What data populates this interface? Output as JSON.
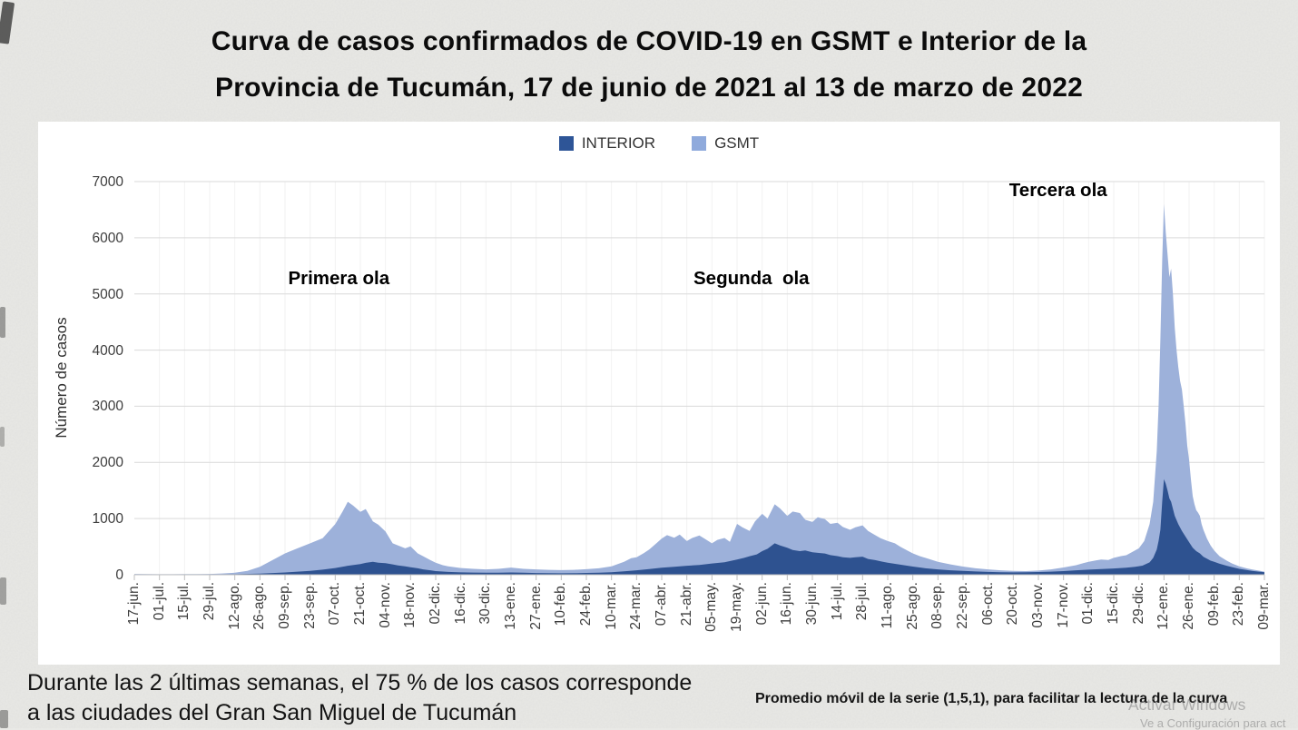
{
  "page": {
    "title_line1": "Curva de casos confirmados de COVID-19 en GSMT e Interior de la",
    "title_line2": "Provincia de Tucumán, 17 de junio de 2021 al 13 de marzo de 2022",
    "footnote_left_line1": "Durante las 2 últimas semanas, el 75 % de los casos corresponde",
    "footnote_left_line2": "a las ciudades del Gran San Miguel de Tucumán",
    "footnote_right": "Promedio móvil de la serie (1,5,1), para facilitar la lectura de la curva",
    "watermark_line1": "Activar Windows",
    "watermark_line2": "Ve a Configuración para act"
  },
  "chart_data": {
    "type": "area",
    "title": "",
    "xlabel": "",
    "ylabel": "Número de casos",
    "ylim": [
      0,
      7000
    ],
    "ytick_step": 1000,
    "yticks": [
      0,
      1000,
      2000,
      3000,
      4000,
      5000,
      6000,
      7000
    ],
    "grid": {
      "horizontal": true,
      "vertical": "faint"
    },
    "legend_position": "top-center",
    "legend": [
      {
        "name": "INTERIOR",
        "color": "#2E5597"
      },
      {
        "name": "GSMT",
        "color": "#8FAADC"
      }
    ],
    "xtick_labels": [
      "17-jun.",
      "01-jul.",
      "15-jul.",
      "29-jul.",
      "12-ago.",
      "26-ago.",
      "09-sep.",
      "23-sep.",
      "07-oct.",
      "21-oct.",
      "04-nov.",
      "18-nov.",
      "02-dic.",
      "16-dic.",
      "30-dic.",
      "13-ene.",
      "27-ene.",
      "10-feb.",
      "24-feb.",
      "10-mar.",
      "24-mar.",
      "07-abr.",
      "21-abr.",
      "05-may.",
      "19-may.",
      "02-jun.",
      "16-jun.",
      "30-jun.",
      "14-jul.",
      "28-jul.",
      "11-ago.",
      "25-ago.",
      "08-sep.",
      "22-sep.",
      "06-oct.",
      "20-oct.",
      "03-nov.",
      "17-nov.",
      "01-dic.",
      "15-dic.",
      "29-dic.",
      "12-ene.",
      "26-ene.",
      "09-feb.",
      "23-feb.",
      "09-mar."
    ],
    "xtick_days": [
      0,
      14,
      28,
      42,
      56,
      70,
      84,
      98,
      112,
      126,
      140,
      154,
      168,
      182,
      196,
      210,
      224,
      238,
      252,
      266,
      280,
      294,
      308,
      322,
      336,
      350,
      364,
      378,
      392,
      406,
      420,
      434,
      448,
      462,
      476,
      490,
      504,
      518,
      532,
      546,
      560,
      574,
      588,
      602,
      616,
      630
    ],
    "annotations": [
      {
        "text": "Primera ola",
        "day": 114,
        "value": 5270
      },
      {
        "text": "Segunda  ola",
        "day": 344,
        "value": 5270
      },
      {
        "text": "Tercera ola",
        "day": 515,
        "value": 6840
      }
    ],
    "series": [
      {
        "name": "GSMT",
        "color": "#9DB1DA",
        "points": [
          [
            0,
            15
          ],
          [
            7,
            12
          ],
          [
            14,
            10
          ],
          [
            21,
            10
          ],
          [
            28,
            12
          ],
          [
            35,
            13
          ],
          [
            42,
            15
          ],
          [
            49,
            22
          ],
          [
            56,
            35
          ],
          [
            63,
            70
          ],
          [
            70,
            140
          ],
          [
            77,
            260
          ],
          [
            84,
            380
          ],
          [
            91,
            470
          ],
          [
            98,
            560
          ],
          [
            105,
            650
          ],
          [
            112,
            900
          ],
          [
            116,
            1120
          ],
          [
            119,
            1300
          ],
          [
            122,
            1230
          ],
          [
            126,
            1120
          ],
          [
            129,
            1170
          ],
          [
            133,
            950
          ],
          [
            136,
            890
          ],
          [
            140,
            770
          ],
          [
            144,
            560
          ],
          [
            147,
            520
          ],
          [
            151,
            470
          ],
          [
            154,
            505
          ],
          [
            158,
            380
          ],
          [
            161,
            330
          ],
          [
            165,
            260
          ],
          [
            168,
            215
          ],
          [
            172,
            170
          ],
          [
            175,
            150
          ],
          [
            182,
            120
          ],
          [
            189,
            105
          ],
          [
            196,
            95
          ],
          [
            203,
            105
          ],
          [
            210,
            128
          ],
          [
            217,
            105
          ],
          [
            224,
            95
          ],
          [
            231,
            88
          ],
          [
            238,
            82
          ],
          [
            245,
            88
          ],
          [
            252,
            98
          ],
          [
            259,
            115
          ],
          [
            266,
            150
          ],
          [
            273,
            230
          ],
          [
            277,
            295
          ],
          [
            280,
            310
          ],
          [
            284,
            385
          ],
          [
            287,
            450
          ],
          [
            291,
            560
          ],
          [
            294,
            645
          ],
          [
            297,
            705
          ],
          [
            301,
            660
          ],
          [
            304,
            715
          ],
          [
            308,
            600
          ],
          [
            311,
            655
          ],
          [
            315,
            700
          ],
          [
            318,
            640
          ],
          [
            322,
            560
          ],
          [
            325,
            620
          ],
          [
            329,
            655
          ],
          [
            332,
            585
          ],
          [
            336,
            905
          ],
          [
            339,
            845
          ],
          [
            343,
            780
          ],
          [
            346,
            950
          ],
          [
            350,
            1085
          ],
          [
            353,
            1000
          ],
          [
            357,
            1255
          ],
          [
            360,
            1180
          ],
          [
            364,
            1050
          ],
          [
            367,
            1125
          ],
          [
            371,
            1100
          ],
          [
            374,
            980
          ],
          [
            378,
            940
          ],
          [
            381,
            1025
          ],
          [
            385,
            990
          ],
          [
            388,
            905
          ],
          [
            392,
            925
          ],
          [
            395,
            850
          ],
          [
            399,
            800
          ],
          [
            402,
            845
          ],
          [
            406,
            880
          ],
          [
            409,
            780
          ],
          [
            413,
            705
          ],
          [
            416,
            650
          ],
          [
            420,
            600
          ],
          [
            424,
            560
          ],
          [
            427,
            500
          ],
          [
            431,
            430
          ],
          [
            434,
            380
          ],
          [
            438,
            330
          ],
          [
            441,
            300
          ],
          [
            448,
            230
          ],
          [
            455,
            185
          ],
          [
            462,
            145
          ],
          [
            469,
            115
          ],
          [
            476,
            95
          ],
          [
            483,
            80
          ],
          [
            490,
            70
          ],
          [
            497,
            65
          ],
          [
            504,
            75
          ],
          [
            511,
            95
          ],
          [
            518,
            130
          ],
          [
            525,
            170
          ],
          [
            529,
            205
          ],
          [
            532,
            230
          ],
          [
            536,
            255
          ],
          [
            539,
            270
          ],
          [
            543,
            262
          ],
          [
            546,
            300
          ],
          [
            550,
            332
          ],
          [
            553,
            348
          ],
          [
            556,
            400
          ],
          [
            560,
            470
          ],
          [
            563,
            600
          ],
          [
            566,
            900
          ],
          [
            568,
            1300
          ],
          [
            570,
            2200
          ],
          [
            571,
            3000
          ],
          [
            572,
            4200
          ],
          [
            573,
            5600
          ],
          [
            574,
            6600
          ],
          [
            575,
            6100
          ],
          [
            576,
            5700
          ],
          [
            577,
            5300
          ],
          [
            578,
            5450
          ],
          [
            579,
            5000
          ],
          [
            580,
            4400
          ],
          [
            581,
            4000
          ],
          [
            582,
            3700
          ],
          [
            583,
            3450
          ],
          [
            584,
            3300
          ],
          [
            585,
            3000
          ],
          [
            586,
            2700
          ],
          [
            587,
            2300
          ],
          [
            588,
            2050
          ],
          [
            589,
            1700
          ],
          [
            590,
            1400
          ],
          [
            591,
            1260
          ],
          [
            592,
            1150
          ],
          [
            593,
            1105
          ],
          [
            594,
            1050
          ],
          [
            595,
            900
          ],
          [
            596,
            800
          ],
          [
            598,
            640
          ],
          [
            600,
            520
          ],
          [
            602,
            430
          ],
          [
            605,
            330
          ],
          [
            609,
            250
          ],
          [
            612,
            200
          ],
          [
            616,
            150
          ],
          [
            620,
            115
          ],
          [
            623,
            95
          ],
          [
            627,
            72
          ],
          [
            630,
            55
          ]
        ]
      },
      {
        "name": "INTERIOR",
        "color": "#2E5290",
        "points": [
          [
            0,
            5
          ],
          [
            14,
            4
          ],
          [
            28,
            5
          ],
          [
            42,
            6
          ],
          [
            56,
            10
          ],
          [
            70,
            20
          ],
          [
            84,
            40
          ],
          [
            98,
            70
          ],
          [
            105,
            90
          ],
          [
            112,
            120
          ],
          [
            119,
            160
          ],
          [
            126,
            190
          ],
          [
            129,
            212
          ],
          [
            133,
            230
          ],
          [
            136,
            215
          ],
          [
            140,
            205
          ],
          [
            144,
            185
          ],
          [
            147,
            165
          ],
          [
            151,
            150
          ],
          [
            154,
            132
          ],
          [
            158,
            115
          ],
          [
            161,
            95
          ],
          [
            165,
            80
          ],
          [
            168,
            65
          ],
          [
            175,
            50
          ],
          [
            182,
            42
          ],
          [
            189,
            38
          ],
          [
            196,
            35
          ],
          [
            203,
            36
          ],
          [
            210,
            40
          ],
          [
            217,
            35
          ],
          [
            224,
            30
          ],
          [
            231,
            28
          ],
          [
            238,
            26
          ],
          [
            245,
            28
          ],
          [
            252,
            32
          ],
          [
            259,
            36
          ],
          [
            266,
            45
          ],
          [
            273,
            60
          ],
          [
            280,
            80
          ],
          [
            287,
            100
          ],
          [
            294,
            125
          ],
          [
            301,
            140
          ],
          [
            308,
            160
          ],
          [
            315,
            175
          ],
          [
            322,
            200
          ],
          [
            329,
            222
          ],
          [
            336,
            270
          ],
          [
            340,
            300
          ],
          [
            343,
            330
          ],
          [
            347,
            362
          ],
          [
            350,
            420
          ],
          [
            353,
            462
          ],
          [
            357,
            560
          ],
          [
            360,
            520
          ],
          [
            364,
            480
          ],
          [
            367,
            442
          ],
          [
            371,
            420
          ],
          [
            374,
            432
          ],
          [
            378,
            400
          ],
          [
            381,
            390
          ],
          [
            385,
            378
          ],
          [
            388,
            350
          ],
          [
            392,
            332
          ],
          [
            395,
            312
          ],
          [
            399,
            300
          ],
          [
            402,
            310
          ],
          [
            406,
            322
          ],
          [
            409,
            282
          ],
          [
            413,
            260
          ],
          [
            417,
            232
          ],
          [
            420,
            215
          ],
          [
            427,
            180
          ],
          [
            434,
            145
          ],
          [
            441,
            115
          ],
          [
            448,
            95
          ],
          [
            455,
            80
          ],
          [
            462,
            68
          ],
          [
            469,
            58
          ],
          [
            476,
            50
          ],
          [
            483,
            45
          ],
          [
            490,
            42
          ],
          [
            497,
            44
          ],
          [
            504,
            48
          ],
          [
            511,
            55
          ],
          [
            518,
            65
          ],
          [
            525,
            80
          ],
          [
            532,
            90
          ],
          [
            539,
            100
          ],
          [
            546,
            112
          ],
          [
            553,
            126
          ],
          [
            558,
            140
          ],
          [
            562,
            162
          ],
          [
            566,
            220
          ],
          [
            568,
            300
          ],
          [
            570,
            450
          ],
          [
            571,
            600
          ],
          [
            572,
            800
          ],
          [
            573,
            1300
          ],
          [
            574,
            1700
          ],
          [
            575,
            1620
          ],
          [
            576,
            1500
          ],
          [
            577,
            1360
          ],
          [
            578,
            1300
          ],
          [
            580,
            1050
          ],
          [
            582,
            900
          ],
          [
            584,
            780
          ],
          [
            586,
            680
          ],
          [
            588,
            580
          ],
          [
            590,
            480
          ],
          [
            592,
            420
          ],
          [
            594,
            380
          ],
          [
            596,
            320
          ],
          [
            598,
            285
          ],
          [
            600,
            250
          ],
          [
            602,
            230
          ],
          [
            605,
            195
          ],
          [
            609,
            160
          ],
          [
            612,
            135
          ],
          [
            616,
            105
          ],
          [
            620,
            85
          ],
          [
            623,
            70
          ],
          [
            627,
            55
          ],
          [
            630,
            45
          ]
        ]
      }
    ]
  }
}
